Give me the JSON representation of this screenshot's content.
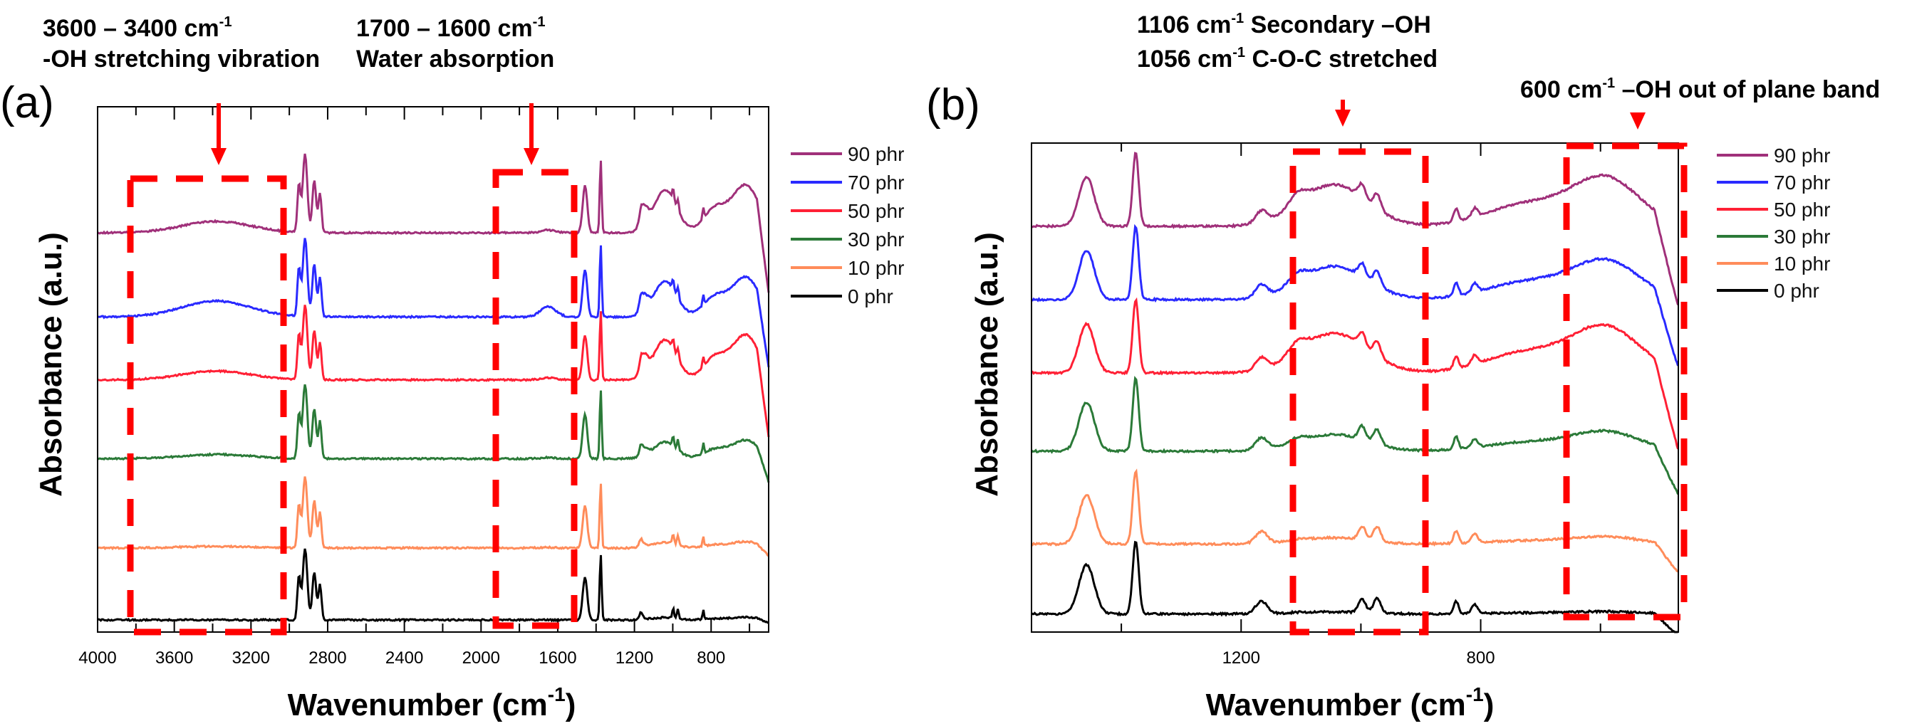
{
  "chart_data": [
    {
      "type": "line",
      "panel_label": "(a)",
      "xlabel": "Wavenumber (cm",
      "xlabel_sup": "-1",
      "xlabel_end": ")",
      "ylabel": "Absorbance (a.u.)",
      "xlim": [
        4000,
        500
      ],
      "ylim": [
        0,
        10
      ],
      "x_tick_labels": [
        "4000",
        "3600",
        "3200",
        "2800",
        "2400",
        "2000",
        "1600",
        "1200",
        "800"
      ],
      "x_ticks": [
        4000,
        3600,
        3200,
        2800,
        2400,
        2000,
        1600,
        1200,
        800
      ],
      "x_minor_step": 200,
      "legend_position": "right",
      "annotations": [
        {
          "line1": "3600 – 3400 cm",
          "sup": "-1",
          "line2": "-OH stretching vibration",
          "region": [
            3850,
            3080
          ]
        },
        {
          "line1": "1700 – 1600 cm",
          "sup": "-1",
          "line2": "Water absorption",
          "region": [
            1920,
            1540
          ]
        }
      ],
      "series": [
        {
          "name": "90 phr",
          "color": "#a0307a",
          "offset": 7.6,
          "scale": 1.0,
          "oh": 0.22,
          "water": 0.05,
          "coc": 0.9
        },
        {
          "name": "70 phr",
          "color": "#2a2aff",
          "offset": 6.0,
          "scale": 1.0,
          "oh": 0.3,
          "water": 0.2,
          "coc": 0.75
        },
        {
          "name": "50 phr",
          "color": "#ff2035",
          "offset": 4.8,
          "scale": 0.95,
          "oh": 0.17,
          "water": 0.04,
          "coc": 0.85
        },
        {
          "name": "30 phr",
          "color": "#2b7a38",
          "offset": 3.3,
          "scale": 0.95,
          "oh": 0.08,
          "water": 0.02,
          "coc": 0.35
        },
        {
          "name": "10 phr",
          "color": "#ff8c5a",
          "offset": 1.6,
          "scale": 0.9,
          "oh": 0.03,
          "water": 0.01,
          "coc": 0.12
        },
        {
          "name": "0 phr",
          "color": "#000000",
          "offset": 0.23,
          "scale": 0.9,
          "oh": 0.0,
          "water": 0.0,
          "coc": 0.05
        }
      ]
    },
    {
      "type": "line",
      "panel_label": "(b)",
      "xlabel": "Wavenumber (cm",
      "xlabel_sup": "-1",
      "xlabel_end": ")",
      "ylabel": "Absorbance (a.u.)",
      "xlim": [
        1550,
        470
      ],
      "ylim": [
        0,
        10
      ],
      "x_tick_labels": [
        "1200",
        "800"
      ],
      "x_ticks": [
        1200,
        800
      ],
      "x_minor_step": 200,
      "legend_position": "right",
      "annotations": [
        {
          "line1": "1106 cm",
          "sup": "-1",
          "line1b": " Secondary –OH",
          "line2": "1056 cm",
          "sup2": "-1",
          "line2b": " C-O-C stretched",
          "region": [
            1100,
            920
          ]
        },
        {
          "line1": "600 cm",
          "sup": "-1",
          "line1b": " –OH out of plane band",
          "region": [
            670,
            485
          ]
        }
      ],
      "series": [
        {
          "name": "90 phr",
          "color": "#a0307a",
          "offset": 8.3,
          "scale": 1.0,
          "coc": 1.0
        },
        {
          "name": "70 phr",
          "color": "#2a2aff",
          "offset": 6.8,
          "scale": 1.0,
          "coc": 0.8
        },
        {
          "name": "50 phr",
          "color": "#ff2035",
          "offset": 5.3,
          "scale": 1.0,
          "coc": 0.95
        },
        {
          "name": "30 phr",
          "color": "#2b7a38",
          "offset": 3.7,
          "scale": 1.0,
          "coc": 0.4
        },
        {
          "name": "10 phr",
          "color": "#ff8c5a",
          "offset": 1.8,
          "scale": 1.0,
          "coc": 0.15
        },
        {
          "name": "0 phr",
          "color": "#000000",
          "offset": 0.37,
          "scale": 1.0,
          "coc": 0.05
        }
      ]
    }
  ]
}
